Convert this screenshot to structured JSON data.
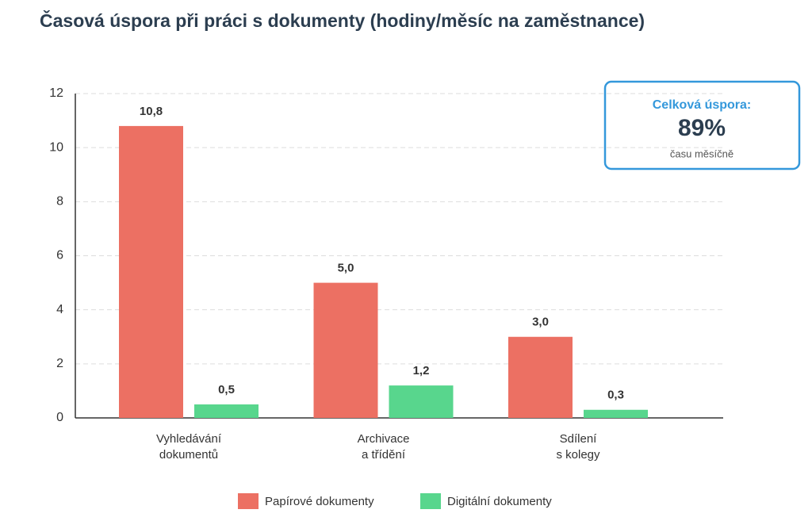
{
  "chart_data": {
    "type": "bar",
    "title": "Časová úspora při práci s dokumenty (hodiny/měsíc na zaměstnance)",
    "categories": [
      "Vyhledávání\ndokumentů",
      "Archivace\na třídění",
      "Sdílení\ns kolegy"
    ],
    "series": [
      {
        "name": "Papírové dokumenty",
        "color": "#ec7063",
        "values": [
          10.8,
          5.0,
          3.0
        ],
        "value_labels": [
          "10,8",
          "5,0",
          "3,0"
        ]
      },
      {
        "name": "Digitální dokumenty",
        "color": "#58d68d",
        "values": [
          0.5,
          1.2,
          0.3
        ],
        "value_labels": [
          "0,5",
          "1,2",
          "0,3"
        ]
      }
    ],
    "ylim": [
      0,
      12
    ],
    "yticks": [
      0,
      2,
      4,
      6,
      8,
      10,
      12
    ],
    "grid": true,
    "legend": "bottom",
    "annotation": {
      "title": "Celková úspora:",
      "value": "89%",
      "text": "času měsíčně"
    }
  }
}
